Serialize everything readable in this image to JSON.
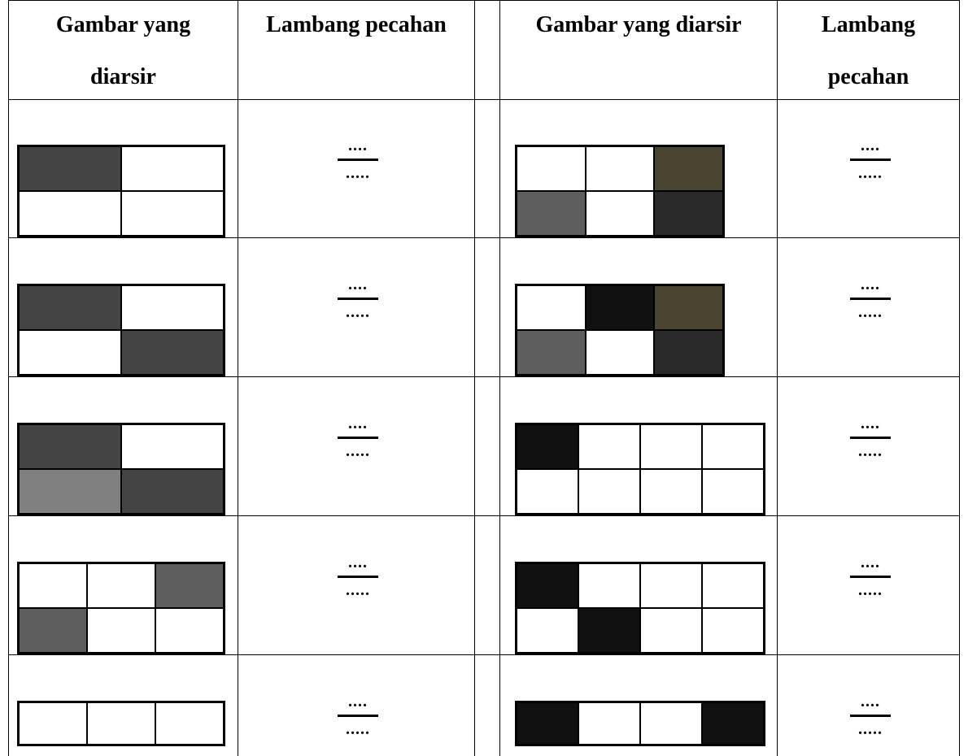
{
  "headers": {
    "col1": [
      "Gambar yang",
      "diarsir"
    ],
    "col2": "Lambang pecahan",
    "col3": "Gambar yang diarsir",
    "col4": [
      "Lambang",
      "pecahan"
    ]
  },
  "fraction_placeholder": {
    "numerator": "....",
    "denominator": "....."
  },
  "rows": [
    {
      "left": {
        "cols": 2,
        "rows": 2,
        "fills": [
          "#444444",
          "#ffffff",
          "#ffffff",
          "#ffffff"
        ]
      },
      "right": {
        "cols": 3,
        "rows": 2,
        "fills": [
          "#ffffff",
          "#ffffff",
          "#4a4530",
          "#5e5e5e",
          "#ffffff",
          "#2a2a2a"
        ]
      }
    },
    {
      "left": {
        "cols": 2,
        "rows": 2,
        "fills": [
          "#444444",
          "#ffffff",
          "#ffffff",
          "#444444"
        ]
      },
      "right": {
        "cols": 3,
        "rows": 2,
        "fills": [
          "#ffffff",
          "#111111",
          "#4a4530",
          "#5e5e5e",
          "#ffffff",
          "#2a2a2a"
        ]
      }
    },
    {
      "left": {
        "cols": 2,
        "rows": 2,
        "fills": [
          "#444444",
          "#ffffff",
          "#808080",
          "#444444"
        ]
      },
      "right": {
        "cols": 4,
        "rows": 2,
        "fills": [
          "#111111",
          "#ffffff",
          "#ffffff",
          "#ffffff",
          "#ffffff",
          "#ffffff",
          "#ffffff",
          "#ffffff"
        ]
      }
    },
    {
      "left": {
        "cols": 3,
        "rows": 2,
        "fills": [
          "#ffffff",
          "#ffffff",
          "#5e5e5e",
          "#5e5e5e",
          "#ffffff",
          "#ffffff"
        ]
      },
      "right": {
        "cols": 4,
        "rows": 2,
        "fills": [
          "#111111",
          "#ffffff",
          "#ffffff",
          "#ffffff",
          "#ffffff",
          "#111111",
          "#ffffff",
          "#ffffff"
        ]
      }
    },
    {
      "left": {
        "cols": 3,
        "rows": 1,
        "fills": [
          "#ffffff",
          "#ffffff",
          "#ffffff"
        ]
      },
      "right": {
        "cols": 4,
        "rows": 1,
        "fills": [
          "#111111",
          "#ffffff",
          "#ffffff",
          "#111111"
        ]
      }
    }
  ]
}
